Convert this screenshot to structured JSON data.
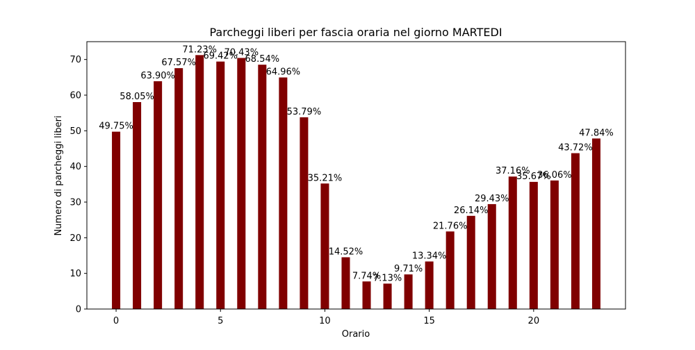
{
  "chart_data": {
    "type": "bar",
    "title": "Parcheggi liberi per fascia oraria nel giorno MARTEDI",
    "xlabel": "Orario",
    "ylabel": "Numero di parcheggi liberi",
    "x": [
      0,
      1,
      2,
      3,
      4,
      5,
      6,
      7,
      8,
      9,
      10,
      11,
      12,
      13,
      14,
      15,
      16,
      17,
      18,
      19,
      20,
      21,
      22,
      23
    ],
    "values": [
      49.75,
      58.05,
      63.9,
      67.57,
      71.23,
      69.42,
      70.43,
      68.54,
      64.96,
      53.79,
      35.21,
      14.52,
      7.74,
      7.13,
      9.71,
      13.34,
      21.76,
      26.14,
      29.43,
      37.16,
      35.67,
      36.06,
      43.72,
      47.84
    ],
    "data_labels": [
      "49.75%",
      "58.05%",
      "63.90%",
      "67.57%",
      "71.23%",
      "69.42%",
      "70.43%",
      "68.54%",
      "64.96%",
      "53.79%",
      "35.21%",
      "14.52%",
      "7.74%",
      "7.13%",
      "9.71%",
      "13.34%",
      "21.76%",
      "26.14%",
      "29.43%",
      "37.16%",
      "35.67%",
      "36.06%",
      "43.72%",
      "47.84%"
    ],
    "xlim": [
      -1.4,
      24.4
    ],
    "ylim": [
      0,
      75
    ],
    "xticks": [
      0,
      5,
      10,
      15,
      20
    ],
    "yticks": [
      0,
      10,
      20,
      30,
      40,
      50,
      60,
      70
    ],
    "bar_color": "#800000",
    "grid": false,
    "legend": "none"
  }
}
